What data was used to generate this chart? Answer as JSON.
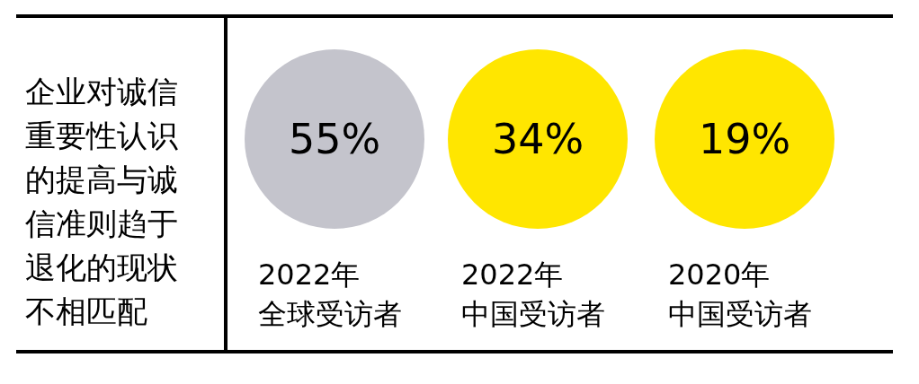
{
  "chart_data": {
    "type": "other",
    "title": "企业对诚信重要性认识的提高与诚信准则趋于退化的现状不相匹配",
    "categories": [
      "2022年全球受访者",
      "2022年中国受访者",
      "2020年中国受访者"
    ],
    "values": [
      55,
      34,
      19
    ],
    "value_labels": [
      "55%",
      "34%",
      "19%"
    ],
    "colors": [
      "#c4c4cc",
      "#ffe600",
      "#ffe600"
    ]
  }
}
